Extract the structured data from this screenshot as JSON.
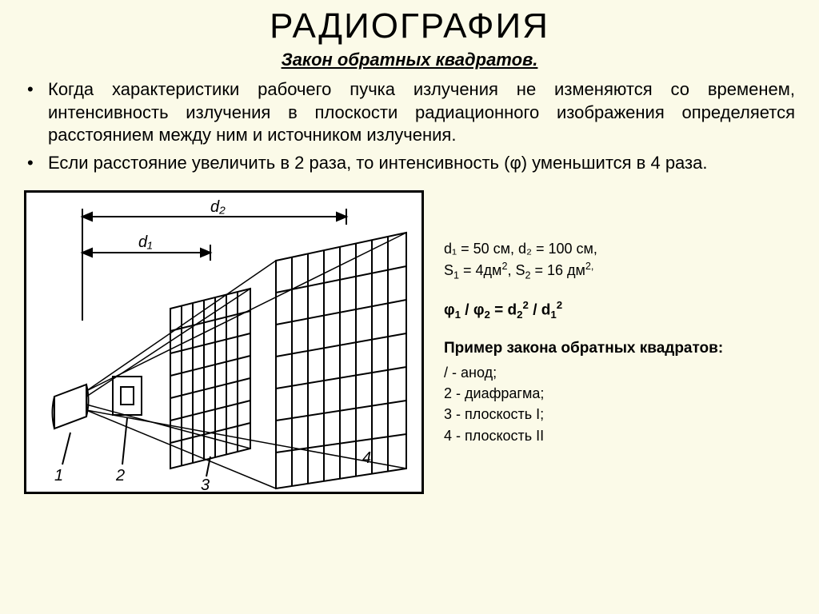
{
  "title": "РАДИОГРАФИЯ",
  "subtitle": "Закон обратных квадратов.",
  "bullets": [
    "Когда характеристики рабочего пучка излучения не изменяются со временем, интенсивность излучения в плоскости радиационного изображения определяется расстоянием между ним и источником излучения.",
    "Если расстояние увеличить в 2 раза, то интенсивность (φ) уменьшится в 4 раза."
  ],
  "values_line1": "d₁ = 50 см, d₂ = 100 см,",
  "values_line2_html": "S<sub>1</sub> = 4дм<sup>2</sup>, S<sub>2</sub> = 16 дм<sup>2,</sup>",
  "formula_html": "φ<sub>1</sub> /  φ<sub>2</sub> = d<sub>2</sub><sup>2</sup> / d<sub>1</sub><sup>2</sup>",
  "example_title": "Пример закона обратных квадратов:",
  "legend": [
    "/ - анод;",
    "2 - диафрагма;",
    "3 - плоскость I;",
    "4 - плоскость II"
  ],
  "diagram": {
    "type": "technical-illustration",
    "background": "#ffffff",
    "stroke": "#000000",
    "stroke_width": 2,
    "labels": {
      "d1": "d₁",
      "d2": "d₂",
      "n1": "1",
      "n2": "2",
      "n3": "3",
      "n4": "4"
    },
    "grid1": {
      "rows": 7,
      "cols": 7
    },
    "grid2": {
      "rows": 7,
      "cols": 8
    }
  }
}
